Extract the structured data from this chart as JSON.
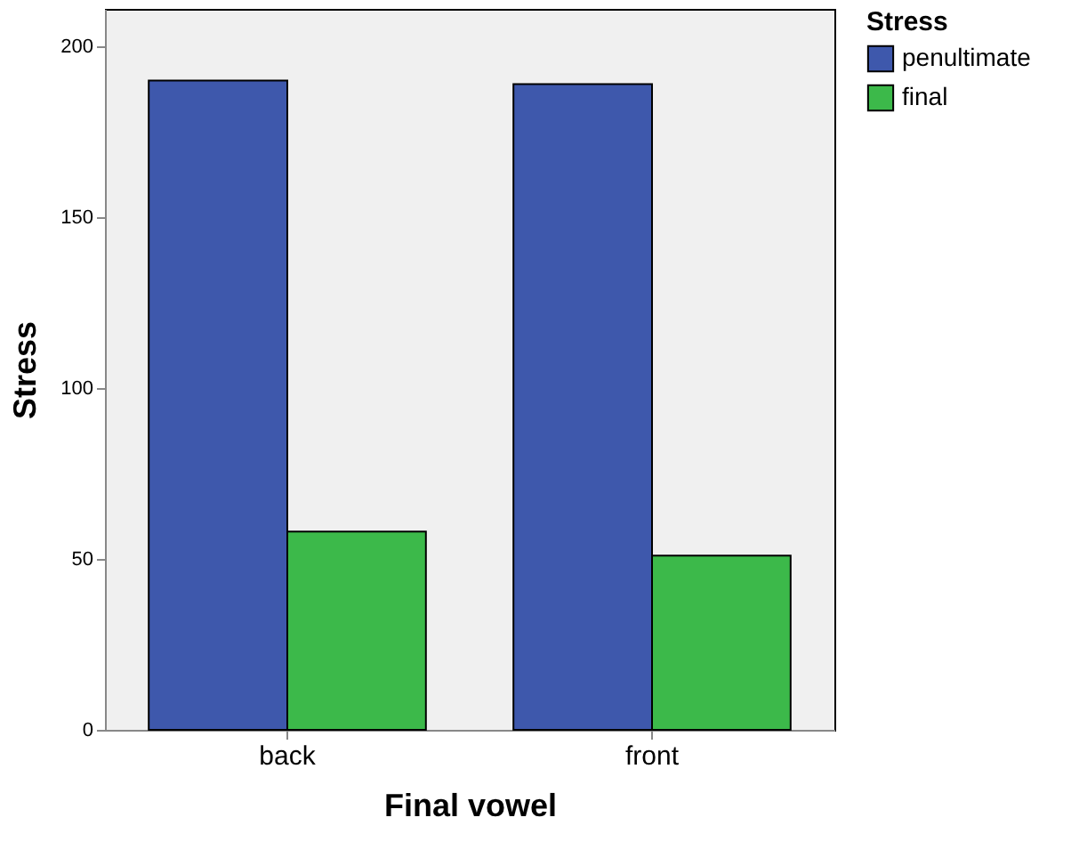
{
  "chart_data": {
    "type": "bar",
    "xlabel": "Final vowel",
    "ylabel": "Stress",
    "legend_title": "Stress",
    "categories": [
      "back",
      "front"
    ],
    "series": [
      {
        "name": "penultimate",
        "color": "#3e58ac",
        "values": [
          190,
          189
        ]
      },
      {
        "name": "final",
        "color": "#3cb94a",
        "values": [
          58,
          51
        ]
      }
    ],
    "ylim": [
      0,
      211
    ],
    "yticks": [
      0,
      50,
      100,
      150,
      200
    ],
    "grid": false,
    "legend": "top right"
  }
}
